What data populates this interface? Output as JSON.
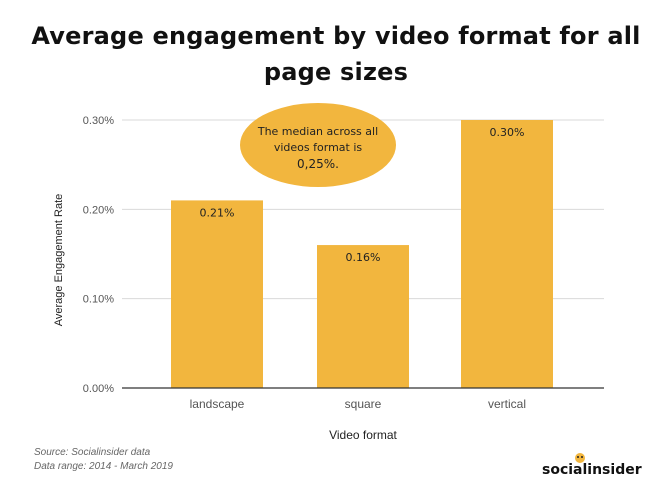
{
  "header": {
    "title_line1": "Average engagement by video format for all",
    "title_line2": "page sizes"
  },
  "annotation": {
    "line1": "The median across all",
    "line2": "videos format is",
    "line3": "0,25%."
  },
  "footer": {
    "source": "Source: Socialinsider data",
    "range": "Data range: 2014 - March 2019",
    "brand": "socialinsider"
  },
  "colors": {
    "bar": "#f2b63e",
    "bubble": "#f2b63e",
    "grid": "#d9d9d9",
    "axis": "#333333"
  },
  "chart_data": {
    "type": "bar",
    "title": "Average engagement by video format for all page sizes",
    "xlabel": "Video format",
    "ylabel": "Average Engagement Rate",
    "categories": [
      "landscape",
      "square",
      "vertical"
    ],
    "values": [
      0.21,
      0.16,
      0.3
    ],
    "value_labels": [
      "0.21%",
      "0.16%",
      "0.30%"
    ],
    "ylim": [
      0,
      0.3
    ],
    "yticks": [
      0,
      0.1,
      0.2,
      0.3
    ],
    "ytick_labels": [
      "0.00%",
      "0.10%",
      "0.20%",
      "0.30%"
    ],
    "grid": true
  }
}
